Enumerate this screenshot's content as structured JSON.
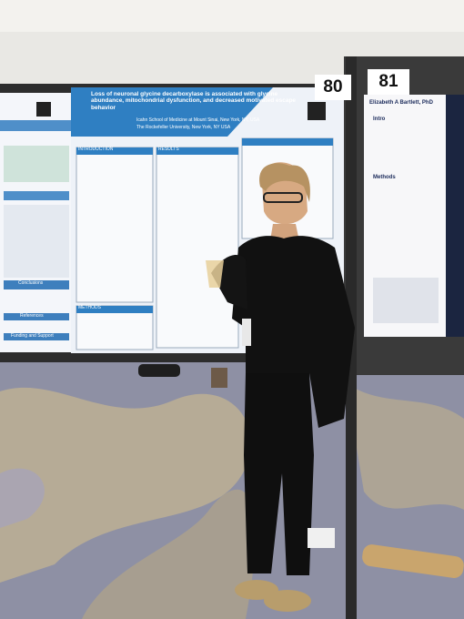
{
  "board_numbers": [
    "80",
    "81"
  ],
  "poster_left": {
    "sections": [
      "Conclusions",
      "References",
      "Funding and Support"
    ]
  },
  "poster_center": {
    "title": "Loss of neuronal glycine decarboxylase is associated with glycine abundance, mitochondrial dysfunction, and decreased motivated escape behavior",
    "affiliations": [
      "Icahn School of Medicine at Mount Sinai, New York, NY, USA",
      "The Rockefeller University, New York, NY USA"
    ],
    "sections": [
      "INTRODUCTION",
      "RESULTS",
      "METHODS"
    ]
  },
  "poster_right": {
    "author": "Elizabeth A Bartlett, PhD",
    "sections": [
      "Intro",
      "Methods"
    ]
  }
}
